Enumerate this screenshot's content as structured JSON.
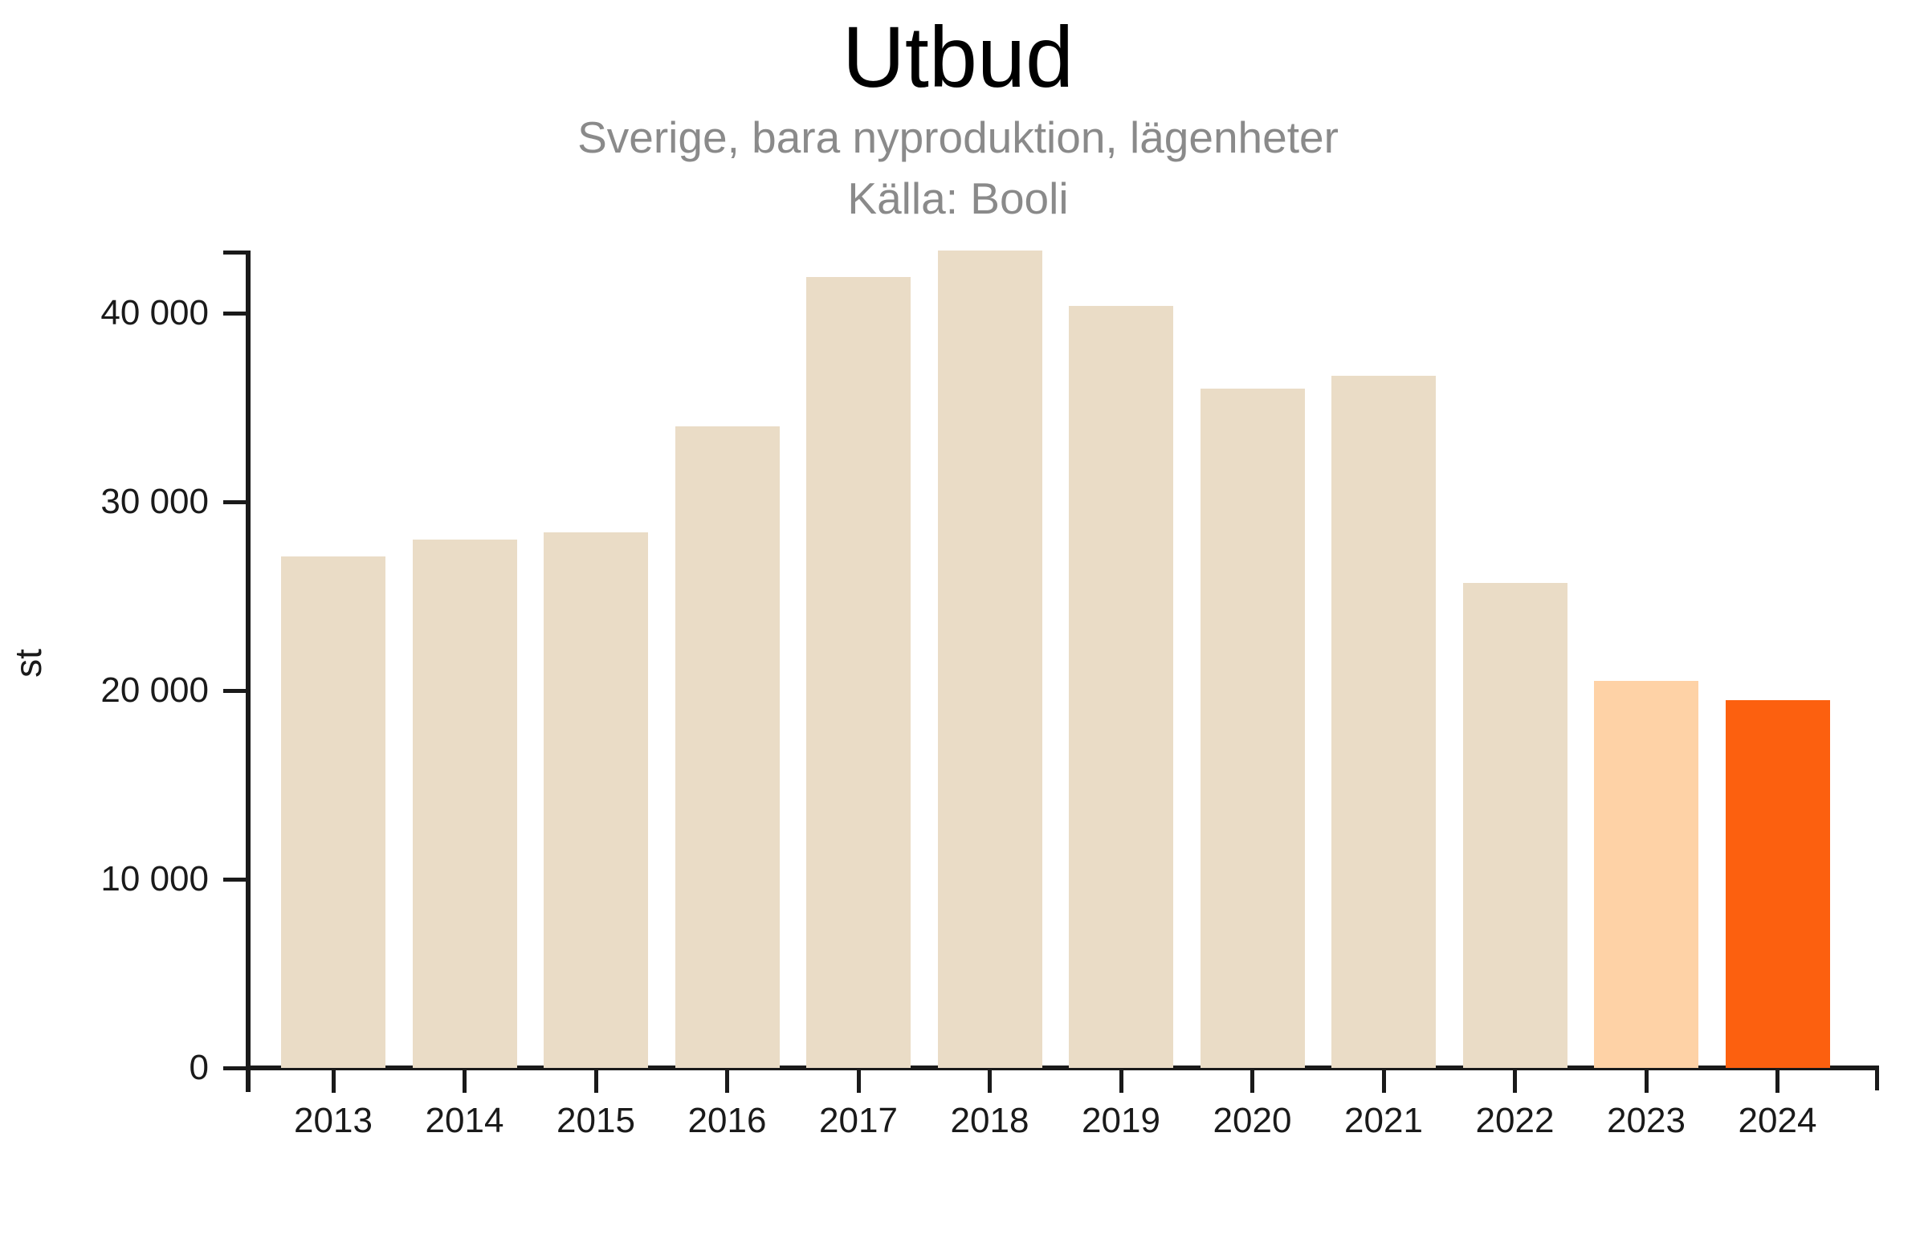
{
  "header": {
    "title": "Utbud",
    "subtitle": "Sverige, bara nyproduktion, lägenheter",
    "source": "Källa: Booli"
  },
  "chart_data": {
    "type": "bar",
    "title": "Utbud",
    "subtitle": "Sverige, bara nyproduktion, lägenheter",
    "source": "Källa: Booli",
    "ylabel": "st",
    "xlabel": "",
    "ylim": [
      0,
      43300
    ],
    "yticks": [
      {
        "value": 0,
        "label": "0"
      },
      {
        "value": 10000,
        "label": "10 000"
      },
      {
        "value": 20000,
        "label": "20 000"
      },
      {
        "value": 30000,
        "label": "30 000"
      },
      {
        "value": 40000,
        "label": "40 000"
      }
    ],
    "grid": false,
    "legend": "none",
    "categories": [
      "2013",
      "2014",
      "2015",
      "2016",
      "2017",
      "2018",
      "2019",
      "2020",
      "2021",
      "2022",
      "2023",
      "2024"
    ],
    "series": [
      {
        "name": "Utbud, st",
        "values": [
          27100,
          28000,
          28400,
          34000,
          41900,
          43300,
          40400,
          36000,
          36700,
          25700,
          20500,
          19500
        ]
      }
    ],
    "bar_styles": [
      "default",
      "default",
      "default",
      "default",
      "default",
      "default",
      "default",
      "default",
      "default",
      "default",
      "highlight-soft",
      "highlight-strong"
    ]
  },
  "colors": {
    "bar_default": "#eadcc6",
    "bar_highlight_soft": "#fed2a6",
    "bar_highlight_strong": "#fc600f",
    "axis": "#1a1a1a",
    "title": "#000000",
    "subtitle": "#8a8a8a",
    "background": "#ffffff"
  }
}
